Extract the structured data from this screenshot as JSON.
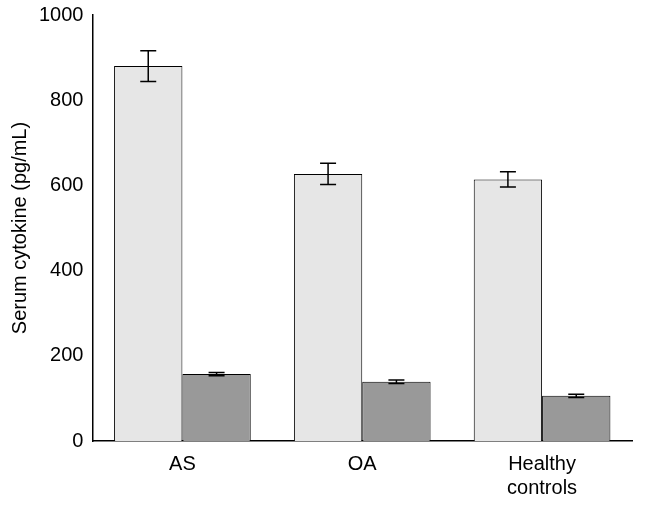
{
  "chart_data": {
    "type": "bar",
    "y_label": "Serum cytokine (pg/mL)",
    "categories": [
      "AS",
      "OA",
      "Healthy controls"
    ],
    "series": [
      {
        "color": "#e6e6e6",
        "values": [
          880,
          627,
          614
        ],
        "errors": [
          36,
          25,
          18
        ]
      },
      {
        "color": "#999999",
        "values": [
          157,
          139,
          106
        ],
        "errors": [
          4,
          4,
          4
        ]
      }
    ],
    "ylim": [
      0,
      1000
    ],
    "yticks": [
      0,
      200,
      400,
      600,
      800,
      1000
    ],
    "grid": false
  }
}
